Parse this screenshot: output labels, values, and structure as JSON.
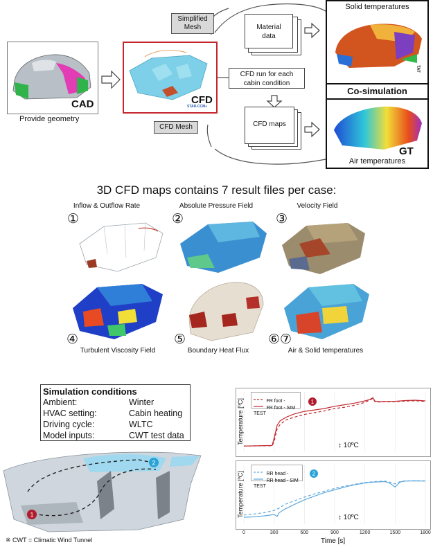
{
  "workflow": {
    "cad_label": "CAD",
    "provide_geometry": "Provide geometry",
    "simplified_mesh": "Simplified\nMesh",
    "cfd_mesh": "CFD Mesh",
    "cfd_label": "CFD",
    "cfd_brand": "STAR-CCM+",
    "material_data": "Material\ndata",
    "cfd_run": "CFD run for each\ncabin condition",
    "cfd_maps": "CFD maps",
    "solid_temperatures": "Solid temperatures",
    "co_simulation": "Co-simulation",
    "gt_label": "GT",
    "air_temperatures": "Air temperatures",
    "tat_label": "TAT"
  },
  "maps_section": {
    "title": "3D CFD maps contains 7 result files per case:",
    "items": [
      {
        "num": "①",
        "label": "Inflow & Outflow Rate"
      },
      {
        "num": "②",
        "label": "Absolute Pressure Field"
      },
      {
        "num": "③",
        "label": "Velocity Field"
      },
      {
        "num": "④",
        "label": "Turbulent Viscosity Field"
      },
      {
        "num": "⑤",
        "label": "Boundary Heat Flux"
      },
      {
        "num": "⑥⑦",
        "label": "Air & Solid temperatures"
      }
    ]
  },
  "conditions": {
    "title": "Simulation conditions",
    "rows": [
      {
        "key": "Ambient:",
        "value": "Winter"
      },
      {
        "key": "HVAC setting:",
        "value": "Cabin heating"
      },
      {
        "key": "Driving cycle:",
        "value": "WLTC"
      },
      {
        "key": "Model inputs:",
        "value": "CWT test data"
      }
    ],
    "footnote": "※ CWT = Climatic Wind Tunnel"
  },
  "marker_colors": {
    "point1": "#b01c2e",
    "point2": "#2aa3d6"
  },
  "chart_data": [
    {
      "type": "line",
      "ylabel": "Temperature [ºC]",
      "xlabel": "",
      "xlim": [
        0,
        1800
      ],
      "marker": "1",
      "scale_label": "10ºC",
      "series": [
        {
          "name": "FR foot - TEST",
          "style": "dashed",
          "color": "#c0282e",
          "x": [
            0,
            280,
            300,
            330,
            360,
            420,
            500,
            600,
            700,
            800,
            900,
            1000,
            1100,
            1200,
            1250,
            1280,
            1300,
            1350,
            1400,
            1500,
            1600,
            1700,
            1800
          ],
          "y": [
            0,
            0.2,
            2.5,
            9.5,
            12,
            14.5,
            16,
            17.5,
            18.5,
            19.5,
            20.8,
            21.5,
            22.6,
            24.2,
            25.5,
            26.4,
            24.6,
            24.4,
            24.5,
            24.6,
            24.9,
            25.1,
            24.7
          ]
        },
        {
          "name": "FR foot - SIM",
          "style": "solid",
          "color": "#c0282e",
          "x": [
            0,
            280,
            300,
            330,
            360,
            420,
            500,
            600,
            700,
            800,
            900,
            1000,
            1100,
            1200,
            1250,
            1280,
            1300,
            1350,
            1400,
            1500,
            1600,
            1700,
            1800
          ],
          "y": [
            0,
            0.3,
            4.5,
            11.5,
            14,
            16,
            17.8,
            19.2,
            20,
            20.8,
            22,
            22.9,
            23.8,
            25,
            25.8,
            26.8,
            24.9,
            24.6,
            24.7,
            24.8,
            25.2,
            25.4,
            25
          ]
        }
      ]
    },
    {
      "type": "line",
      "ylabel": "Temperature [ºC]",
      "xlabel": "Time [s]",
      "xlim": [
        0,
        1800
      ],
      "xticks": [
        0,
        300,
        600,
        900,
        1200,
        1500,
        1800
      ],
      "marker": "2",
      "scale_label": "10ºC",
      "series": [
        {
          "name": "RR head - TEST",
          "style": "dashed",
          "color": "#5fa8dc",
          "x": [
            0,
            100,
            200,
            300,
            350,
            400,
            500,
            600,
            700,
            800,
            900,
            1000,
            1100,
            1200,
            1300,
            1400,
            1450,
            1500,
            1550,
            1600,
            1700,
            1800
          ],
          "y": [
            0,
            0.4,
            1.0,
            2.0,
            3.0,
            4.5,
            6.2,
            7.8,
            9.2,
            10.4,
            11.6,
            12.6,
            13.4,
            14.2,
            14.6,
            14.8,
            14.3,
            13.6,
            14.6,
            14.9,
            15.0,
            14.9
          ]
        },
        {
          "name": "RR head - SIM",
          "style": "solid",
          "color": "#5fa8dc",
          "x": [
            0,
            100,
            200,
            300,
            330,
            350,
            400,
            500,
            600,
            700,
            800,
            900,
            1000,
            1100,
            1200,
            1300,
            1400,
            1450,
            1500,
            1550,
            1600,
            1700,
            1800
          ],
          "y": [
            -1.0,
            -0.8,
            -0.4,
            0.2,
            -0.6,
            1.0,
            2.4,
            4.6,
            6.6,
            8.2,
            9.8,
            11.0,
            12.2,
            13.2,
            14.0,
            14.4,
            14.6,
            13.8,
            12.2,
            14.4,
            14.8,
            14.9,
            14.8
          ]
        }
      ]
    }
  ]
}
